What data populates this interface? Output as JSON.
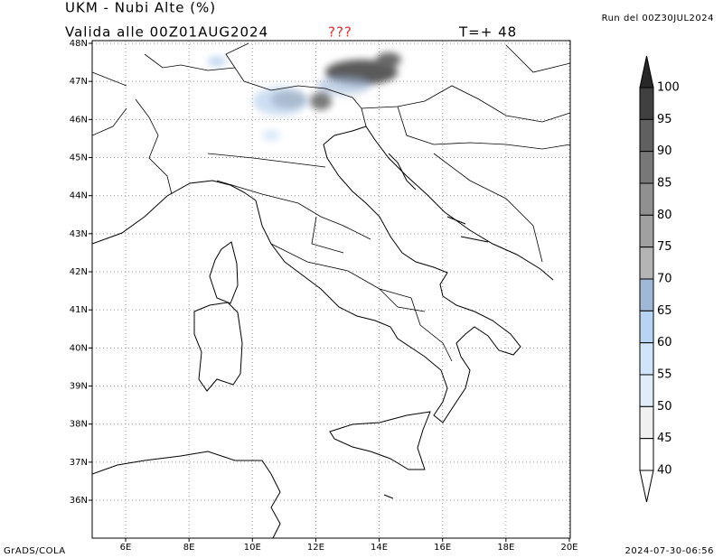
{
  "header": {
    "title": "UKM  -  Nubi Alte (%)",
    "valid": "Valida alle 00Z01AUG2024",
    "marker": "???",
    "step": "T=+ 48",
    "run": "Run del 00Z30JUL2024"
  },
  "axes": {
    "lon_labels": [
      "6E",
      "8E",
      "10E",
      "12E",
      "14E",
      "16E",
      "18E",
      "20E"
    ],
    "lat_labels": [
      "48N",
      "47N",
      "46N",
      "45N",
      "44N",
      "43N",
      "42N",
      "41N",
      "40N",
      "39N",
      "38N",
      "37N",
      "36N"
    ]
  },
  "colorbar": {
    "labels": [
      "100",
      "95",
      "90",
      "85",
      "80",
      "75",
      "70",
      "65",
      "60",
      "55",
      "50",
      "45",
      "40"
    ]
  },
  "footer": {
    "credit": "GrADS/COLA",
    "timestamp": "2024-07-30-06:56"
  }
}
